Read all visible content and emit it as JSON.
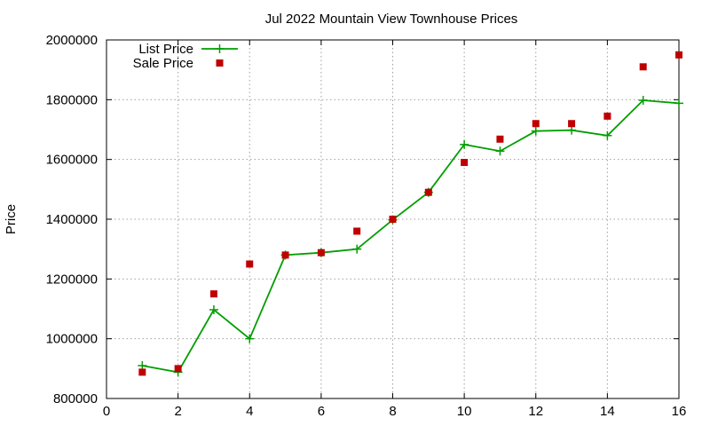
{
  "chart_data": {
    "type": "line",
    "title": "Jul 2022 Mountain View Townhouse Prices",
    "xlabel": "",
    "ylabel": "Price",
    "xlim": [
      0,
      16
    ],
    "ylim": [
      800000,
      2000000
    ],
    "x_ticks": [
      0,
      2,
      4,
      6,
      8,
      10,
      12,
      14,
      16
    ],
    "y_ticks": [
      800000,
      1000000,
      1200000,
      1400000,
      1600000,
      1800000,
      2000000
    ],
    "grid": true,
    "legend_position": "top-left",
    "series": [
      {
        "name": "List Price",
        "style": "line-with-plus-markers",
        "color": "#009e00",
        "x": [
          1,
          2,
          3,
          4,
          5,
          6,
          7,
          8,
          9,
          10,
          11,
          12,
          13,
          14,
          15,
          16
        ],
        "y": [
          910000,
          888000,
          1097000,
          1000000,
          1280000,
          1288000,
          1300000,
          1398000,
          1490000,
          1650000,
          1628000,
          1695000,
          1698000,
          1680000,
          1798000,
          1788000
        ]
      },
      {
        "name": "Sale Price",
        "style": "square-markers",
        "color": "#c00000",
        "x": [
          1,
          2,
          3,
          4,
          5,
          6,
          7,
          8,
          9,
          10,
          11,
          12,
          13,
          14,
          15,
          16
        ],
        "y": [
          888000,
          900000,
          1150000,
          1250000,
          1280000,
          1288000,
          1360000,
          1400000,
          1490000,
          1590000,
          1668000,
          1720000,
          1720000,
          1745000,
          1910000,
          1950000
        ]
      }
    ]
  }
}
